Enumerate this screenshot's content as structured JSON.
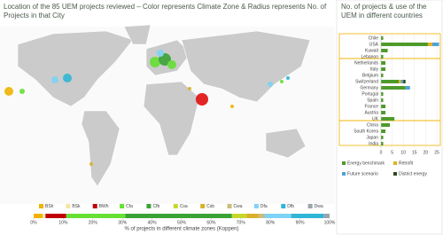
{
  "map_title": "Location of the 85 UEM projects reviewed – Color represents Climate Zone & Radius represents No. of Projects in that City",
  "chart_data": [
    {
      "type": "stacked-bar",
      "xlabel": "% of projects in different climate zones (Koppen)",
      "xlim": [
        0,
        100
      ],
      "xticks": [
        {
          "value": 0,
          "label": "0%"
        },
        {
          "value": 10,
          "label": "10%"
        },
        {
          "value": 20,
          "label": "20%"
        },
        {
          "value": 30,
          "label": "30%"
        },
        {
          "value": 40,
          "label": "40%"
        },
        {
          "value": 50,
          "label": "50%"
        },
        {
          "value": 60,
          "label": "60%"
        },
        {
          "value": 70,
          "label": "70%"
        },
        {
          "value": 80,
          "label": "80%"
        },
        {
          "value": 90,
          "label": "90%"
        },
        {
          "value": 100,
          "label": "100%"
        }
      ],
      "series": [
        {
          "name": "BSh",
          "color": "#f0b400",
          "values": [
            3
          ]
        },
        {
          "name": "BSk",
          "color": "#f3e6a6",
          "values": [
            1
          ]
        },
        {
          "name": "BWh",
          "color": "#c00000",
          "values": [
            7
          ]
        },
        {
          "name": "Cfa",
          "color": "#66e033",
          "values": [
            20
          ]
        },
        {
          "name": "Cfb",
          "color": "#3aa335",
          "values": [
            36
          ]
        },
        {
          "name": "Csa",
          "color": "#c8d82a",
          "values": [
            5
          ]
        },
        {
          "name": "Csb",
          "color": "#d9b02a",
          "values": [
            4
          ]
        },
        {
          "name": "Cwa",
          "color": "#c9bd7a",
          "values": [
            2
          ]
        },
        {
          "name": "Dfa",
          "color": "#7fd3f5",
          "values": [
            9
          ]
        },
        {
          "name": "Dfb",
          "color": "#2fb6d6",
          "values": [
            11
          ]
        },
        {
          "name": "Dwa",
          "color": "#9aa5ab",
          "values": [
            2
          ]
        }
      ]
    },
    {
      "type": "stacked-bar",
      "title": "No. of projects & use of the UEM in different countries",
      "categories": [
        "Chile",
        "USA",
        "Kuwait",
        "Lebanon",
        "Netherlands",
        "Italy",
        "Belgium",
        "Switzerland",
        "Germany",
        "Portugal",
        "Spain",
        "France",
        "Austria",
        "UK",
        "China",
        "South Korea",
        "Japan",
        "India"
      ],
      "xlim": [
        0,
        25
      ],
      "xticks": [
        0,
        5,
        10,
        15,
        20,
        25
      ],
      "grid": true,
      "series": [
        {
          "name": "Energy benchmark",
          "color": "#4e9a2b",
          "values": [
            1,
            21,
            3,
            1,
            2,
            2,
            1,
            8,
            11,
            1,
            1,
            2,
            2,
            6,
            4,
            2,
            1,
            1
          ]
        },
        {
          "name": "Retrofit",
          "color": "#e2b21c",
          "values": [
            0,
            2,
            0,
            0,
            0,
            0,
            0,
            1,
            0,
            0,
            0,
            0,
            0,
            0,
            0,
            0,
            0,
            0
          ]
        },
        {
          "name": "Future scenario",
          "color": "#4fa3d8",
          "values": [
            0,
            3,
            0,
            0,
            0,
            0,
            0,
            1,
            2,
            0,
            0,
            0,
            0,
            0,
            0,
            0,
            0,
            0
          ]
        },
        {
          "name": "District energy",
          "color": "#2d4a1e",
          "values": [
            0,
            0,
            0,
            0,
            0,
            0,
            0,
            1,
            0,
            0,
            0,
            0,
            0,
            0,
            0,
            0,
            0,
            0
          ]
        }
      ]
    }
  ]
}
